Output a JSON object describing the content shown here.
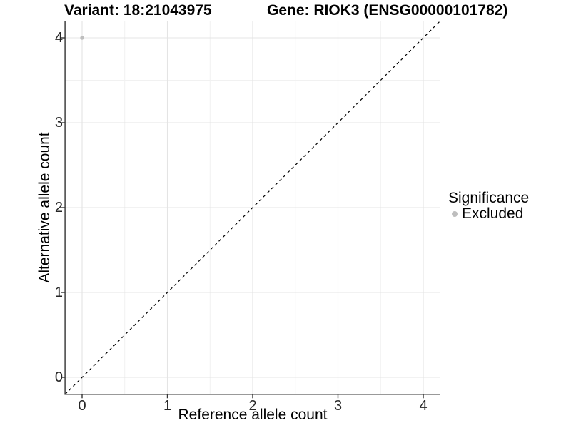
{
  "titles": {
    "variant": "Variant: 18:21043975",
    "gene": "Gene: RIOK3 (ENSG00000101782)"
  },
  "legend": {
    "title": "Significance",
    "items": [
      {
        "label": "Excluded",
        "color": "#bebebe"
      }
    ]
  },
  "colors": {
    "background": "#ffffff",
    "grid_major": "#e4e4e4",
    "grid_minor": "#f1f1f1",
    "axis": "#333333",
    "tick_text": "#262626",
    "point": "#bebebe",
    "reference_line": "#000000"
  },
  "chart_data": {
    "type": "scatter",
    "title": "Variant: 18:21043975   Gene: RIOK3 (ENSG00000101782)",
    "xlabel": "Reference allele count",
    "ylabel": "Alternative allele count",
    "xlim": [
      -0.2,
      4.2
    ],
    "ylim": [
      -0.2,
      4.2
    ],
    "x_ticks": [
      0,
      1,
      2,
      3,
      4
    ],
    "y_ticks": [
      0,
      1,
      2,
      3,
      4
    ],
    "x_minor": [
      0.5,
      1.5,
      2.5,
      3.5
    ],
    "y_minor": [
      0.5,
      1.5,
      2.5,
      3.5
    ],
    "grid": true,
    "legend_position": "right",
    "series": [
      {
        "name": "Excluded",
        "color": "#bebebe",
        "points": [
          {
            "x": 0,
            "y": 4
          }
        ]
      }
    ],
    "reference_line": {
      "type": "identity",
      "style": "dashed",
      "from": [
        -0.2,
        -0.2
      ],
      "to": [
        4.2,
        4.2
      ],
      "color": "#000000"
    }
  }
}
